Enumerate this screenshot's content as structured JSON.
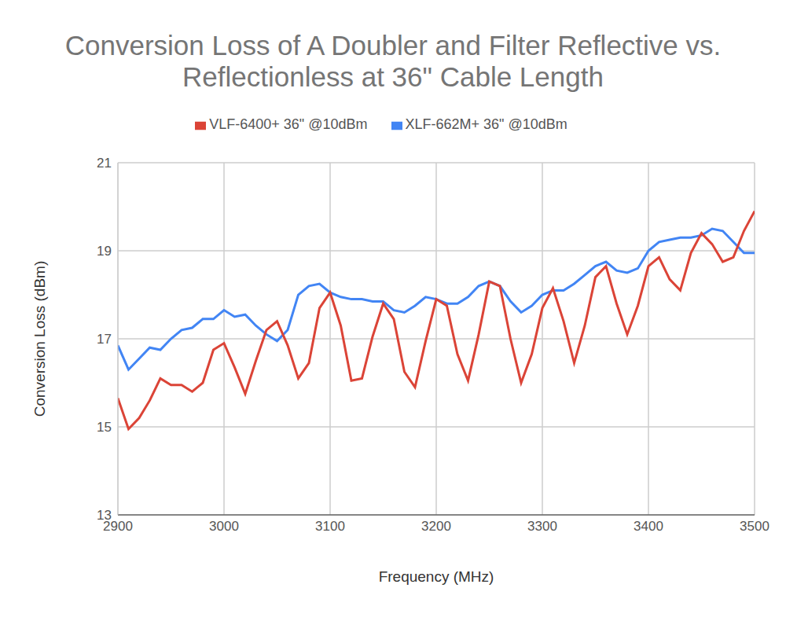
{
  "chart_data": {
    "type": "line",
    "title": "Conversion Loss of A Doubler and Filter Reflective vs. Reflectionless at 36\" Cable Length",
    "x_label": "Frequency (MHz)",
    "y_label": "Conversion Loss (dBm)",
    "x": [
      2900,
      2910,
      2920,
      2930,
      2940,
      2950,
      2960,
      2970,
      2980,
      2990,
      3000,
      3010,
      3020,
      3030,
      3040,
      3050,
      3060,
      3070,
      3080,
      3090,
      3100,
      3110,
      3120,
      3130,
      3140,
      3150,
      3160,
      3170,
      3180,
      3190,
      3200,
      3210,
      3220,
      3230,
      3240,
      3250,
      3260,
      3270,
      3280,
      3290,
      3300,
      3310,
      3320,
      3330,
      3340,
      3350,
      3360,
      3370,
      3380,
      3390,
      3400,
      3410,
      3420,
      3430,
      3440,
      3450,
      3460,
      3470,
      3480,
      3490,
      3500
    ],
    "series": [
      {
        "name": "XLF-662M+ 36\" @10dBm",
        "color": "#4285f4",
        "values": [
          16.85,
          16.3,
          16.55,
          16.8,
          16.75,
          17.0,
          17.2,
          17.25,
          17.45,
          17.45,
          17.65,
          17.5,
          17.55,
          17.3,
          17.1,
          16.95,
          17.2,
          18.0,
          18.2,
          18.25,
          18.05,
          17.95,
          17.9,
          17.9,
          17.85,
          17.85,
          17.65,
          17.6,
          17.75,
          17.95,
          17.9,
          17.8,
          17.8,
          17.95,
          18.2,
          18.3,
          18.2,
          17.85,
          17.6,
          17.75,
          18.0,
          18.1,
          18.1,
          18.25,
          18.45,
          18.65,
          18.75,
          18.55,
          18.5,
          18.6,
          19.0,
          19.2,
          19.25,
          19.3,
          19.3,
          19.35,
          19.5,
          19.45,
          19.2,
          18.95,
          18.95
        ]
      },
      {
        "name": "VLF-6400+ 36\" @10dBm",
        "color": "#db4437",
        "values": [
          15.65,
          14.95,
          15.2,
          15.6,
          16.1,
          15.95,
          15.95,
          15.8,
          16.0,
          16.75,
          16.9,
          16.35,
          15.75,
          16.5,
          17.2,
          17.4,
          16.85,
          16.1,
          16.45,
          17.7,
          18.05,
          17.3,
          16.05,
          16.1,
          17.05,
          17.8,
          17.45,
          16.25,
          15.9,
          16.95,
          17.9,
          17.75,
          16.65,
          16.05,
          17.1,
          18.3,
          18.2,
          17.0,
          16.0,
          16.65,
          17.7,
          18.15,
          17.4,
          16.45,
          17.3,
          18.4,
          18.65,
          17.8,
          17.1,
          17.75,
          18.65,
          18.85,
          18.35,
          18.1,
          18.95,
          19.4,
          19.15,
          18.75,
          18.85,
          19.45,
          19.9
        ]
      }
    ],
    "xlim": [
      2900,
      3500
    ],
    "xticks": [
      2900,
      3000,
      3100,
      3200,
      3300,
      3400,
      3500
    ],
    "ylim": [
      13,
      21
    ],
    "yticks": [
      13,
      15,
      17,
      19,
      21
    ],
    "grid": true,
    "legend": "top"
  }
}
